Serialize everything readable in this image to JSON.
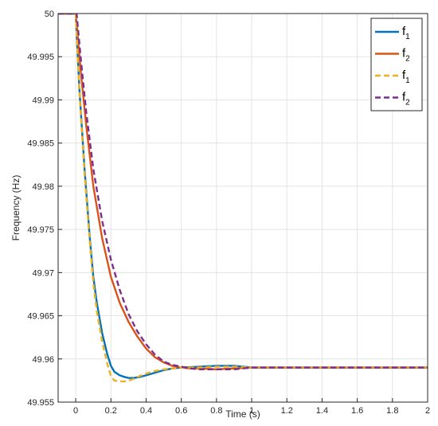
{
  "chart_data": {
    "type": "line",
    "title": "",
    "xlabel": "Time (s)",
    "ylabel": "Frequency (Hz)",
    "xlim": [
      -0.1,
      2
    ],
    "ylim": [
      49.955,
      50
    ],
    "grid": true,
    "legend_position": "top-right",
    "x_ticks": [
      0,
      0.2,
      0.4,
      0.6,
      0.8,
      1,
      1.2,
      1.4,
      1.6,
      1.8,
      2
    ],
    "x_tick_labels": [
      "0",
      "0.2",
      "0.4",
      "0.6",
      "0.8",
      "1",
      "1.2",
      "1.4",
      "1.6",
      "1.8",
      "2"
    ],
    "y_ticks": [
      49.955,
      49.96,
      49.965,
      49.97,
      49.975,
      49.98,
      49.985,
      49.99,
      49.995,
      50
    ],
    "y_tick_labels": [
      "49.955",
      "49.96",
      "49.965",
      "49.97",
      "49.975",
      "49.98",
      "49.985",
      "49.99",
      "49.995",
      "50"
    ],
    "series": [
      {
        "name": "f1",
        "name_base": "f",
        "name_sub": "1",
        "color": "#0072BD",
        "style": "solid",
        "x": [
          -0.1,
          0,
          0.02,
          0.05,
          0.08,
          0.1,
          0.12,
          0.15,
          0.18,
          0.2,
          0.22,
          0.25,
          0.28,
          0.3,
          0.33,
          0.36,
          0.4,
          0.45,
          0.5,
          0.55,
          0.6,
          0.7,
          0.8,
          0.9,
          1.0,
          1.2,
          1.5,
          2.0
        ],
        "y": [
          50,
          50,
          49.9915,
          49.982,
          49.974,
          49.9695,
          49.9665,
          49.963,
          49.9605,
          49.9592,
          49.9585,
          49.9581,
          49.9579,
          49.9578,
          49.9578,
          49.9579,
          49.9581,
          49.9584,
          49.9587,
          49.9589,
          49.959,
          49.9591,
          49.9592,
          49.9592,
          49.959,
          49.959,
          49.959,
          49.959
        ]
      },
      {
        "name": "f2",
        "name_base": "f",
        "name_sub": "2",
        "color": "#D95319",
        "style": "solid",
        "x": [
          -0.1,
          0,
          0.03,
          0.06,
          0.1,
          0.15,
          0.2,
          0.25,
          0.3,
          0.35,
          0.4,
          0.45,
          0.5,
          0.55,
          0.6,
          0.65,
          0.7,
          0.8,
          0.9,
          1.0,
          1.2,
          1.5,
          2.0
        ],
        "y": [
          50,
          50,
          49.993,
          49.987,
          49.98,
          49.974,
          49.9695,
          49.9665,
          49.9643,
          49.9626,
          49.9612,
          49.9602,
          49.9596,
          49.9592,
          49.959,
          49.9589,
          49.9589,
          49.9588,
          49.9589,
          49.959,
          49.959,
          49.959,
          49.959
        ]
      },
      {
        "name": "f1",
        "name_base": "f",
        "name_sub": "1",
        "color": "#EDB120",
        "style": "dashed",
        "x": [
          -0.1,
          0,
          0.02,
          0.05,
          0.08,
          0.1,
          0.12,
          0.15,
          0.18,
          0.2,
          0.22,
          0.25,
          0.28,
          0.3,
          0.33,
          0.36,
          0.4,
          0.45,
          0.5,
          0.55,
          0.6,
          0.7,
          0.8,
          0.9,
          1.0,
          1.2,
          1.5,
          2.0
        ],
        "y": [
          50,
          50,
          49.9912,
          49.9815,
          49.9735,
          49.9688,
          49.9655,
          49.962,
          49.9594,
          49.958,
          49.9575,
          49.9574,
          49.9574,
          49.9575,
          49.9577,
          49.958,
          49.9583,
          49.9586,
          49.9588,
          49.9589,
          49.959,
          49.959,
          49.9591,
          49.9591,
          49.959,
          49.959,
          49.959,
          49.959
        ]
      },
      {
        "name": "f2",
        "name_base": "f",
        "name_sub": "2",
        "color": "#7E2F8E",
        "style": "dashed",
        "x": [
          -0.1,
          0.005,
          0.03,
          0.06,
          0.1,
          0.15,
          0.2,
          0.25,
          0.3,
          0.35,
          0.4,
          0.45,
          0.5,
          0.55,
          0.6,
          0.65,
          0.7,
          0.8,
          0.9,
          1.0,
          1.2,
          1.5,
          2.0
        ],
        "y": [
          50,
          50,
          49.9945,
          49.9885,
          49.982,
          49.976,
          49.9715,
          49.968,
          49.9652,
          49.9632,
          49.9617,
          49.9605,
          49.9597,
          49.9593,
          49.9591,
          49.9589,
          49.9588,
          49.9588,
          49.9588,
          49.959,
          49.959,
          49.959,
          49.959
        ]
      }
    ]
  }
}
